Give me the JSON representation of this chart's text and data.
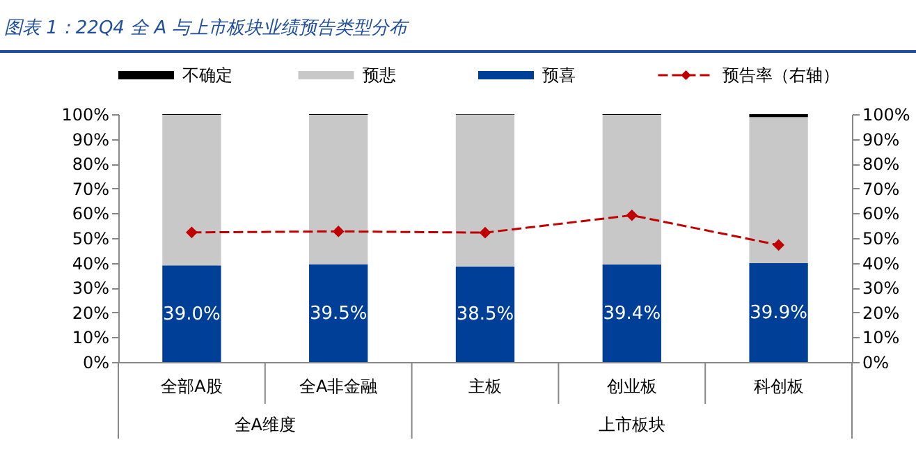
{
  "chart_data": {
    "type": "bar",
    "title": "图表 1：22Q4 全 A 与上市板块业绩预告类型分布",
    "categories": [
      "全部A股",
      "全A非金融",
      "主板",
      "创业板",
      "科创板"
    ],
    "stacked": true,
    "series": [
      {
        "name": "预喜",
        "color": "#003f98",
        "values": [
          39.0,
          39.5,
          38.5,
          39.4,
          39.9
        ],
        "value_labels": [
          "39.0%",
          "39.5%",
          "38.5%",
          "39.4%",
          "39.9%"
        ]
      },
      {
        "name": "预悲",
        "color": "#c8c8c8",
        "values": [
          60.7,
          60.2,
          61.3,
          60.3,
          58.9
        ]
      },
      {
        "name": "不确定",
        "color": "#000000",
        "values": [
          0.3,
          0.3,
          0.2,
          0.3,
          1.2
        ]
      },
      {
        "name": "预告率（右轴）",
        "type": "line",
        "axis": "y2",
        "color": "#c00000",
        "values": [
          52.3,
          52.7,
          52.2,
          59.2,
          47.2
        ],
        "marker": "diamond",
        "line_style": "dashed"
      }
    ],
    "ylim": [
      0,
      100
    ],
    "yticks": [
      {
        "value": 0,
        "label": "0%"
      },
      {
        "value": 10,
        "label": "10%"
      },
      {
        "value": 20,
        "label": "20%"
      },
      {
        "value": 30,
        "label": "30%"
      },
      {
        "value": 40,
        "label": "40%"
      },
      {
        "value": 50,
        "label": "50%"
      },
      {
        "value": 60,
        "label": "60%"
      },
      {
        "value": 70,
        "label": "70%"
      },
      {
        "value": 80,
        "label": "80%"
      },
      {
        "value": 90,
        "label": "90%"
      },
      {
        "value": 100,
        "label": "100%"
      }
    ],
    "y2lim": [
      0,
      100
    ],
    "y2ticks": [
      {
        "value": 0,
        "label": "0%"
      },
      {
        "value": 10,
        "label": "10%"
      },
      {
        "value": 20,
        "label": "20%"
      },
      {
        "value": 30,
        "label": "30%"
      },
      {
        "value": 40,
        "label": "40%"
      },
      {
        "value": 50,
        "label": "50%"
      },
      {
        "value": 60,
        "label": "60%"
      },
      {
        "value": 70,
        "label": "70%"
      },
      {
        "value": 80,
        "label": "80%"
      },
      {
        "value": 90,
        "label": "90%"
      },
      {
        "value": 100,
        "label": "100%"
      }
    ],
    "legend": "top",
    "grid": false,
    "annotations": [
      "全A维度",
      "上市板块"
    ]
  }
}
